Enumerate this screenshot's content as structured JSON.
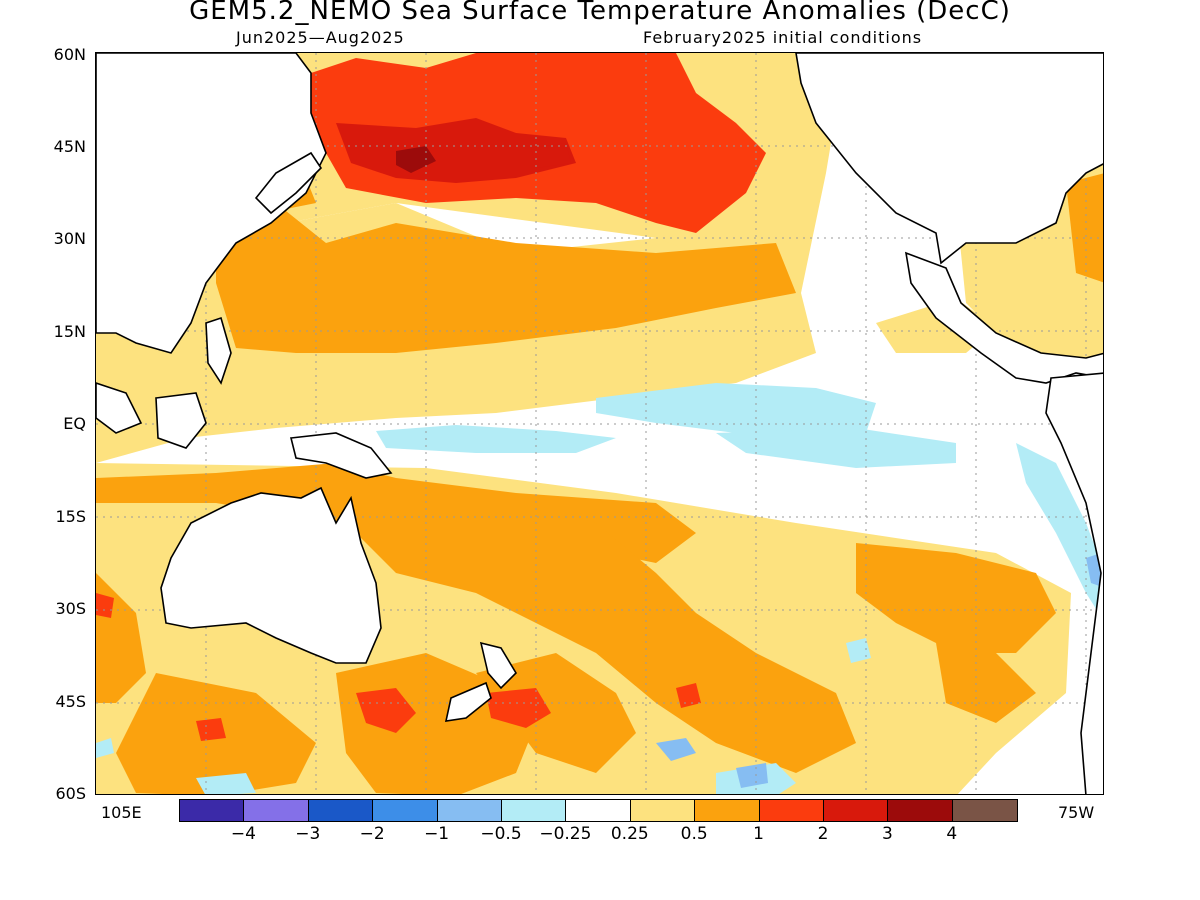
{
  "title": "GEM5.2_NEMO Sea Surface Temperature Anomalies (DecC)",
  "subtitle_left": "Jun2025—Aug2025",
  "subtitle_right": "February2025 initial conditions",
  "lat_labels": [
    "60N",
    "45N",
    "30N",
    "15N",
    "EQ",
    "15S",
    "30S",
    "45S",
    "60S"
  ],
  "lon_left": "105E",
  "lon_right": "75W",
  "colorbar": {
    "colors": [
      "#3b2aa8",
      "#8470e8",
      "#1a58c8",
      "#3d8ee8",
      "#86bdf2",
      "#b3ecf6",
      "#ffffff",
      "#fde27f",
      "#fba20e",
      "#fb3c0e",
      "#d8190c",
      "#9c0b0b",
      "#7a5446"
    ],
    "labels": [
      "-4",
      "-3",
      "-2",
      "-1",
      "-0.5",
      "-0.25",
      "0.25",
      "0.5",
      "1",
      "2",
      "3",
      "4"
    ]
  },
  "map_colors": {
    "light_yellow": "#fde27f",
    "orange": "#fba20e",
    "red_orange": "#fb3c0e",
    "red": "#d8190c",
    "dark_red": "#9c0b0b",
    "light_cyan": "#b3ecf6",
    "light_blue": "#86bdf2"
  }
}
